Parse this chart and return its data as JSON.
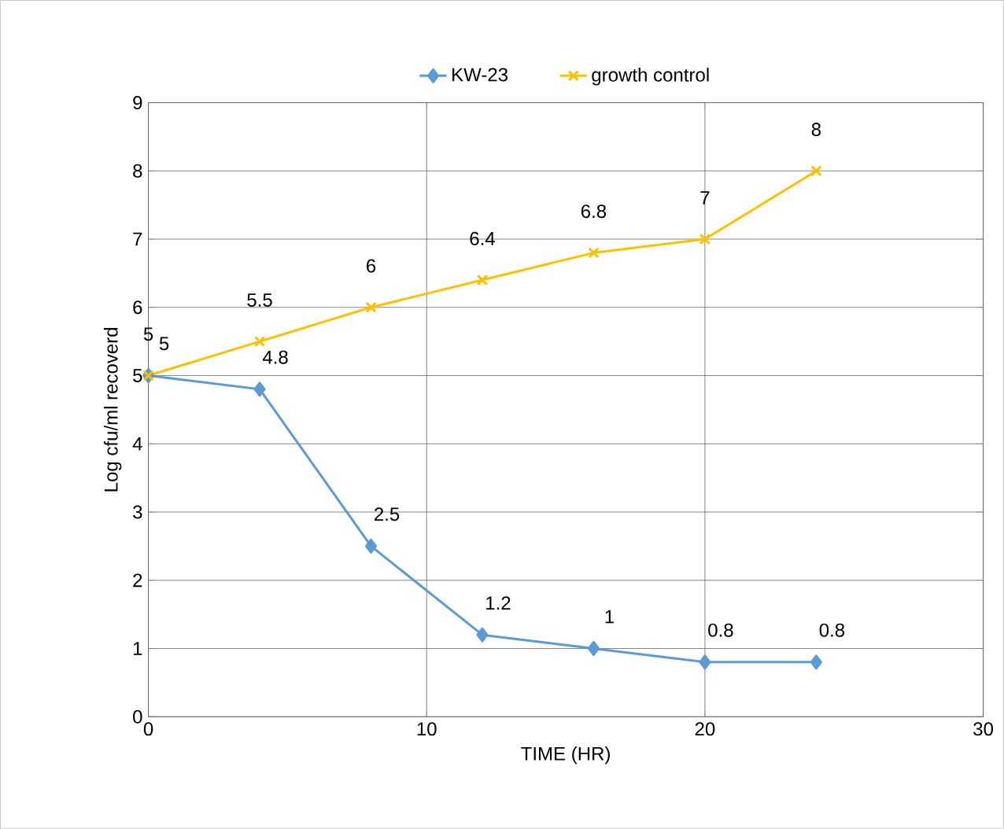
{
  "chart_data": {
    "type": "line",
    "xlabel": "TIME (HR)",
    "ylabel": "Log cfu/ml recoverd",
    "xlim": [
      0,
      30
    ],
    "xticks": [
      0,
      10,
      20,
      30
    ],
    "ylim": [
      0,
      9
    ],
    "yticks": [
      0,
      1,
      2,
      3,
      4,
      5,
      6,
      7,
      8,
      9
    ],
    "grid": true,
    "legend": "top",
    "data_labels": true,
    "line_style": "solid",
    "series": [
      {
        "name": "KW-23",
        "color": "#5b9bd5",
        "marker": "diamond",
        "x": [
          0,
          4,
          8,
          12,
          16,
          20,
          24
        ],
        "values": [
          5,
          4.8,
          2.5,
          1.2,
          1,
          0.8,
          0.8
        ]
      },
      {
        "name": "growth control",
        "color": "#ffc000",
        "marker": "cross",
        "x": [
          0,
          4,
          8,
          12,
          16,
          20,
          24
        ],
        "values": [
          5,
          5.5,
          6,
          6.4,
          6.8,
          7,
          8
        ]
      }
    ]
  }
}
